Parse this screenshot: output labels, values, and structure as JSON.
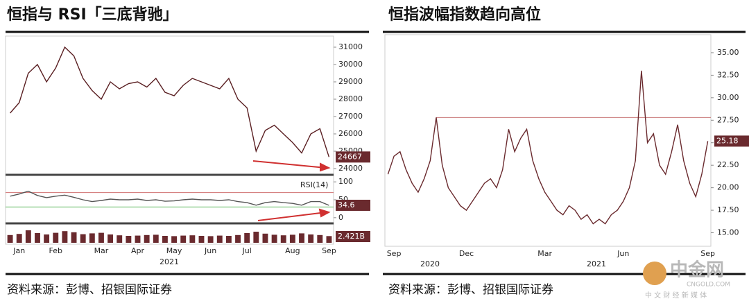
{
  "chart_data": [
    {
      "type": "line",
      "title": "恒指与 RSI「三底背驰」",
      "source": "资料来源：彭博、招银国际证券",
      "categories": [
        null,
        "Jan",
        null,
        null,
        null,
        "Feb",
        null,
        null,
        null,
        null,
        "Mar",
        null,
        null,
        null,
        "Apr",
        null,
        null,
        null,
        "May",
        null,
        null,
        null,
        "Jun",
        null,
        null,
        null,
        "Jul",
        null,
        null,
        null,
        null,
        "Aug",
        null,
        null,
        null,
        "Sep"
      ],
      "x_group_label": "2021",
      "panels": [
        {
          "type": "line",
          "color": "#5a1f22",
          "values": [
            27200,
            27800,
            29500,
            30000,
            29000,
            29800,
            31000,
            30500,
            29200,
            28500,
            28000,
            29000,
            28600,
            28900,
            29000,
            28700,
            29200,
            28400,
            28200,
            28800,
            29200,
            29000,
            28800,
            28600,
            29200,
            28000,
            27500,
            25000,
            26200,
            26500,
            26000,
            25500,
            24900,
            26000,
            26300,
            24667
          ],
          "ylim": [
            23800,
            31600
          ],
          "yticks": [
            24000,
            25000,
            26000,
            27000,
            28000,
            29000,
            30000,
            31000
          ]
        },
        {
          "type": "line",
          "name": "RSI(14)",
          "color": "#555555",
          "values": [
            60,
            66,
            74,
            62,
            56,
            60,
            63,
            57,
            50,
            45,
            48,
            52,
            50,
            50,
            52,
            48,
            50,
            46,
            47,
            50,
            52,
            50,
            50,
            48,
            50,
            45,
            42,
            35,
            42,
            45,
            42,
            40,
            35,
            45,
            45,
            34.6
          ],
          "ylim": [
            -10,
            110
          ],
          "yticks": [
            0,
            50,
            100
          ],
          "reference_lines": [
            {
              "value": 70,
              "color": "#d07070"
            },
            {
              "value": 30,
              "color": "#5cb85c"
            }
          ]
        },
        {
          "type": "bar",
          "color": "#6a2a2e",
          "values": [
            2.8,
            3.2,
            4.5,
            3.5,
            3.0,
            3.6,
            4.2,
            3.8,
            3.1,
            3.4,
            3.6,
            3.0,
            2.7,
            2.5,
            2.6,
            2.8,
            2.9,
            2.5,
            2.4,
            2.6,
            2.7,
            2.5,
            2.4,
            2.6,
            2.5,
            2.8,
            3.5,
            4.0,
            3.3,
            2.9,
            2.7,
            2.9,
            3.4,
            3.0,
            2.8,
            2.421
          ],
          "last_label": "2.421B",
          "ylim": [
            0,
            5.5
          ]
        }
      ]
    },
    {
      "type": "line",
      "title": "恒指波幅指数趋向高位",
      "source": "资料来源：彭博、招银国际证券",
      "categories": [
        null,
        "Sep",
        null,
        null,
        null,
        null,
        null,
        null,
        null,
        null,
        null,
        null,
        null,
        "Dec",
        null,
        null,
        null,
        null,
        null,
        null,
        null,
        null,
        null,
        null,
        null,
        null,
        "Mar",
        null,
        null,
        null,
        null,
        null,
        null,
        null,
        null,
        null,
        null,
        null,
        null,
        "Jun",
        null,
        null,
        null,
        null,
        null,
        null,
        null,
        null,
        null,
        null,
        null,
        null,
        null,
        "Sep"
      ],
      "x_group_labels": [
        "2020",
        "2021"
      ],
      "color": "#6a2a2e",
      "values": [
        21.5,
        23.5,
        24.0,
        22.0,
        20.5,
        19.5,
        21.0,
        23.0,
        27.8,
        22.5,
        20.0,
        19.0,
        18.0,
        17.5,
        18.5,
        19.5,
        20.5,
        21.0,
        20.0,
        22.0,
        26.5,
        24.0,
        25.5,
        26.5,
        23.0,
        21.0,
        19.5,
        18.5,
        17.5,
        17.0,
        18.0,
        17.5,
        16.5,
        17.0,
        16.0,
        16.5,
        16.0,
        17.0,
        17.5,
        18.5,
        20.0,
        23.0,
        33.0,
        25.0,
        26.0,
        22.5,
        21.5,
        24.0,
        27.0,
        23.0,
        20.5,
        19.0,
        21.5,
        25.18
      ],
      "reference_line": {
        "value": 27.8,
        "color": "#c97a7a"
      },
      "ylim": [
        13.5,
        37.0
      ],
      "yticks": [
        {
          "value": 15,
          "label": "15.00"
        },
        {
          "value": 17.5,
          "label": "17.50"
        },
        {
          "value": 20,
          "label": "20.00"
        },
        {
          "value": 22.5,
          "label": "22.50"
        },
        {
          "value": 25,
          "label": "25.00"
        },
        {
          "value": 27.5,
          "label": "27.50"
        },
        {
          "value": 30,
          "label": "30.00"
        },
        {
          "value": 32.5,
          "label": "32.50"
        },
        {
          "value": 35,
          "label": "35.00"
        }
      ]
    }
  ],
  "watermark": {
    "brand": "中金网",
    "site": "CNGOLD.COM",
    "tagline": "中 文 财 经 新 媒 体"
  }
}
